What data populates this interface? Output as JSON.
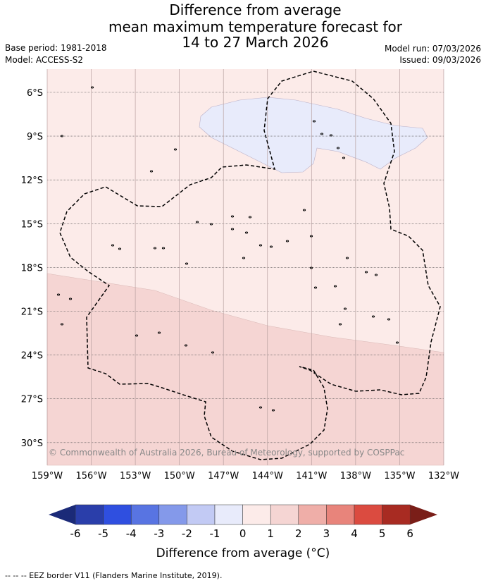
{
  "title": {
    "line1": "Difference from average",
    "line2": "mean maximum temperature forecast for",
    "line3": "14 to 27 March 2026"
  },
  "meta": {
    "base_period": "Base period: 1981-2018",
    "model": "Model: ACCESS-S2",
    "model_run": "Model run: 07/03/2026",
    "issued": "Issued: 09/03/2026"
  },
  "map": {
    "lat_labels": [
      "6°S",
      "9°S",
      "12°S",
      "15°S",
      "18°S",
      "21°S",
      "24°S",
      "27°S",
      "30°S"
    ],
    "lon_labels": [
      "159°W",
      "156°W",
      "153°W",
      "150°W",
      "147°W",
      "144°W",
      "141°W",
      "138°W",
      "135°W",
      "132°W"
    ],
    "copyright": "© Commonwealth of Australia 2026, Bureau of Meteorology, supported by COSPPac",
    "regions": [
      {
        "category": "-1 to 0",
        "color": "#e8ebfb"
      },
      {
        "category": "0 to 1",
        "color": "#fcebe9"
      },
      {
        "category": "1 to 2",
        "color": "#f5d5d3"
      }
    ]
  },
  "colorbar": {
    "label": "Difference from average (°C)",
    "ticks": [
      "-6",
      "-5",
      "-4",
      "-3",
      "-2",
      "-1",
      "0",
      "1",
      "2",
      "3",
      "4",
      "5",
      "6"
    ],
    "under_color": "#1b2a78",
    "over_color": "#7a1e18",
    "colors": [
      "#2a3eaa",
      "#2f4fe0",
      "#5874e2",
      "#8499ea",
      "#c2caf4",
      "#e8ebfb",
      "#fcebe9",
      "#f5d5d3",
      "#efaea8",
      "#e8847b",
      "#db4b40",
      "#a82b22"
    ]
  },
  "footer": "-- -- -- EEZ border V11 (Flanders Marine Institute, 2019)."
}
